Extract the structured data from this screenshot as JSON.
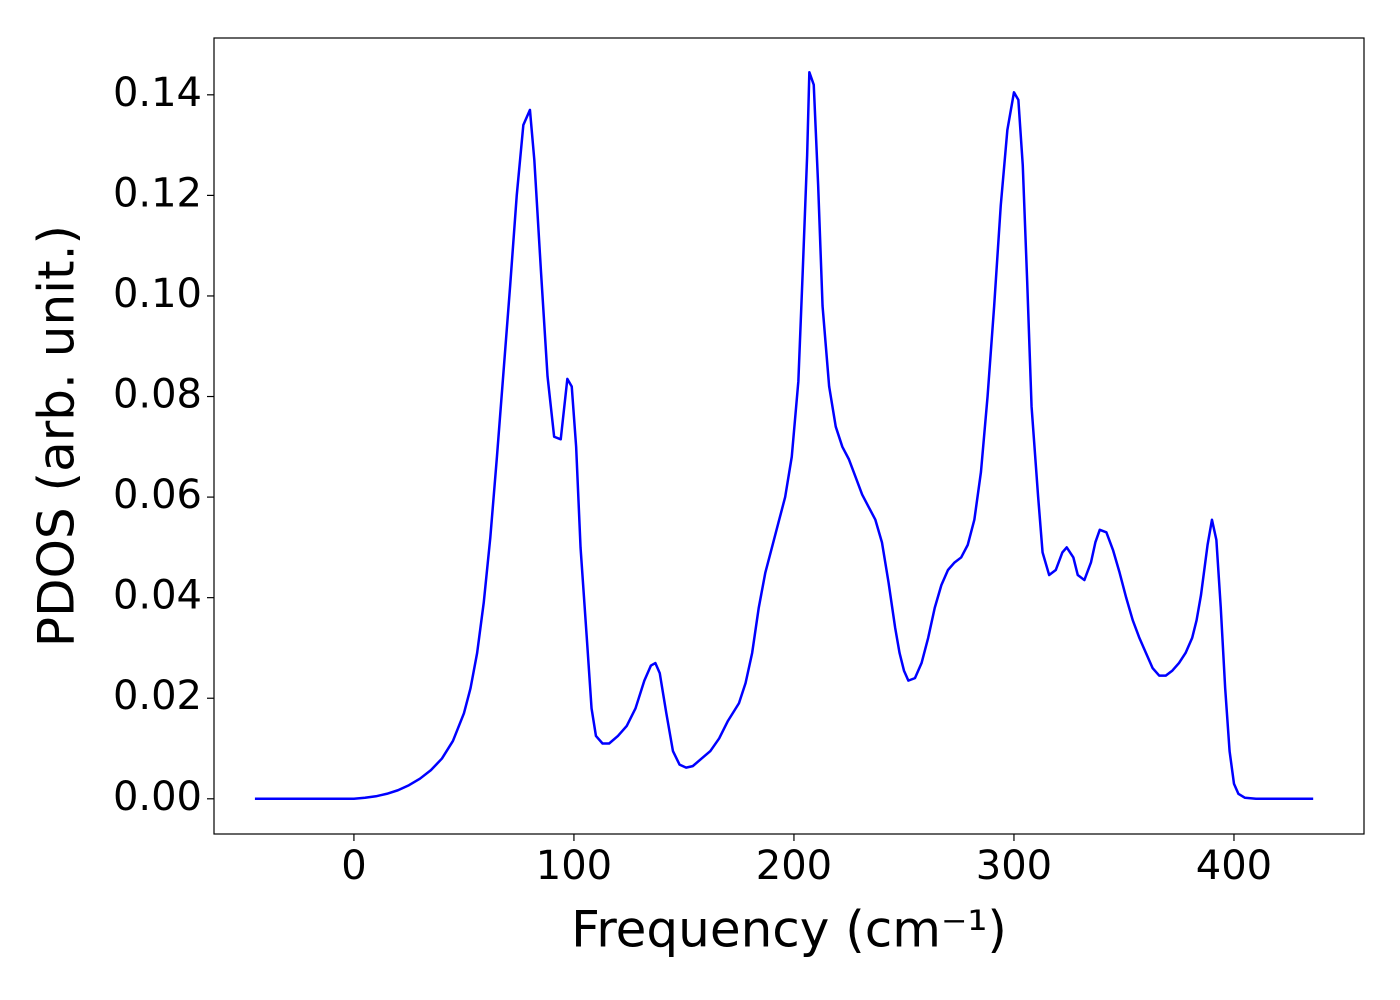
{
  "chart_data": {
    "type": "line",
    "x_label": "Frequency (cm⁻¹)",
    "y_label": "PDOS (arb. unit.)",
    "x": [
      -45,
      0,
      5,
      10,
      15,
      20,
      25,
      30,
      35,
      40,
      45,
      50,
      53,
      56,
      59,
      62,
      65,
      68,
      71,
      74,
      77,
      80,
      82,
      85,
      88,
      91,
      94,
      97,
      99,
      101,
      103,
      106,
      108,
      110,
      113,
      116,
      120,
      124,
      128,
      132,
      135,
      137,
      139,
      142,
      145,
      148,
      151,
      154,
      158,
      162,
      166,
      170,
      175,
      178,
      181,
      184,
      187,
      190,
      193,
      196,
      199,
      202,
      204,
      206,
      207,
      209,
      211,
      213,
      216,
      219,
      222,
      225,
      228,
      231,
      234,
      237,
      240,
      243,
      246,
      248,
      250,
      252,
      255,
      258,
      261,
      264,
      267,
      270,
      273,
      276,
      279,
      282,
      285,
      288,
      291,
      294,
      297,
      300,
      302,
      304,
      306,
      308,
      311,
      313,
      316,
      319,
      322,
      324,
      327,
      329,
      332,
      335,
      337,
      339,
      342,
      345,
      348,
      351,
      354,
      357,
      360,
      363,
      366,
      369,
      372,
      375,
      378,
      381,
      383,
      385,
      388,
      390,
      392,
      394,
      396,
      398,
      400,
      402,
      405,
      410,
      436
    ],
    "series": [
      {
        "color": "#0000ff",
        "values": [
          0,
          0,
          0.0002,
          0.0005,
          0.001,
          0.0017,
          0.0027,
          0.004,
          0.0057,
          0.008,
          0.0115,
          0.017,
          0.022,
          0.029,
          0.039,
          0.052,
          0.068,
          0.085,
          0.102,
          0.12,
          0.134,
          0.137,
          0.127,
          0.105,
          0.084,
          0.072,
          0.0715,
          0.0835,
          0.082,
          0.07,
          0.05,
          0.031,
          0.018,
          0.0125,
          0.011,
          0.011,
          0.0125,
          0.0145,
          0.018,
          0.0235,
          0.0265,
          0.027,
          0.025,
          0.017,
          0.0095,
          0.0068,
          0.0062,
          0.0065,
          0.008,
          0.0095,
          0.012,
          0.0155,
          0.019,
          0.023,
          0.029,
          0.038,
          0.045,
          0.05,
          0.055,
          0.06,
          0.068,
          0.083,
          0.105,
          0.128,
          0.1445,
          0.142,
          0.122,
          0.098,
          0.082,
          0.074,
          0.07,
          0.0675,
          0.064,
          0.0605,
          0.058,
          0.0555,
          0.051,
          0.043,
          0.034,
          0.029,
          0.0255,
          0.0235,
          0.024,
          0.027,
          0.032,
          0.038,
          0.0425,
          0.0455,
          0.047,
          0.048,
          0.0505,
          0.0555,
          0.065,
          0.08,
          0.098,
          0.118,
          0.133,
          0.1405,
          0.139,
          0.126,
          0.103,
          0.078,
          0.06,
          0.049,
          0.0445,
          0.0455,
          0.049,
          0.05,
          0.048,
          0.0445,
          0.0435,
          0.047,
          0.051,
          0.0535,
          0.053,
          0.0495,
          0.045,
          0.04,
          0.0355,
          0.032,
          0.029,
          0.026,
          0.0245,
          0.0245,
          0.0255,
          0.027,
          0.029,
          0.032,
          0.0355,
          0.0405,
          0.0505,
          0.0555,
          0.0515,
          0.038,
          0.022,
          0.0095,
          0.003,
          0.001,
          0.0002,
          0,
          0
        ]
      }
    ],
    "xlim": [
      -63.6,
      459.1
    ],
    "ylim": [
      -0.007,
      0.1513
    ],
    "xticks": [
      0,
      100,
      200,
      300,
      400
    ],
    "yticks": [
      {
        "value": 0,
        "label": "0.00"
      },
      0.02,
      0.04,
      0.06,
      0.08,
      {
        "value": 0.1,
        "label": "0.10"
      },
      0.12,
      0.14
    ],
    "grid": false
  }
}
